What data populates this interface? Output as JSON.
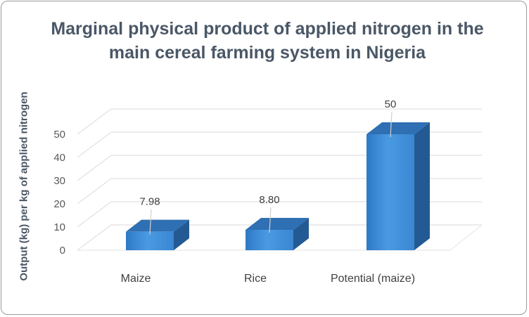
{
  "chart_data": {
    "type": "bar",
    "title": "Marginal physical product of applied nitrogen in the main cereal farming system in Nigeria",
    "xlabel": "",
    "ylabel": "Output (kg)  per kg of applied nitrogen",
    "categories": [
      "Maize",
      "Rice",
      "Potential (maize)"
    ],
    "values": [
      7.98,
      8.8,
      50
    ],
    "data_labels": [
      "7.98",
      "8.80",
      "50"
    ],
    "ylim": [
      0,
      50
    ],
    "yticks": [
      "0",
      "10",
      "20",
      "30",
      "40",
      "50"
    ],
    "style": "3d-column",
    "grid": true,
    "legend": "none"
  },
  "colors": {
    "bar_front": "#3f8fd9",
    "bar_top": "#2f6fb3",
    "bar_side": "#245a93",
    "title": "#4a5766"
  }
}
